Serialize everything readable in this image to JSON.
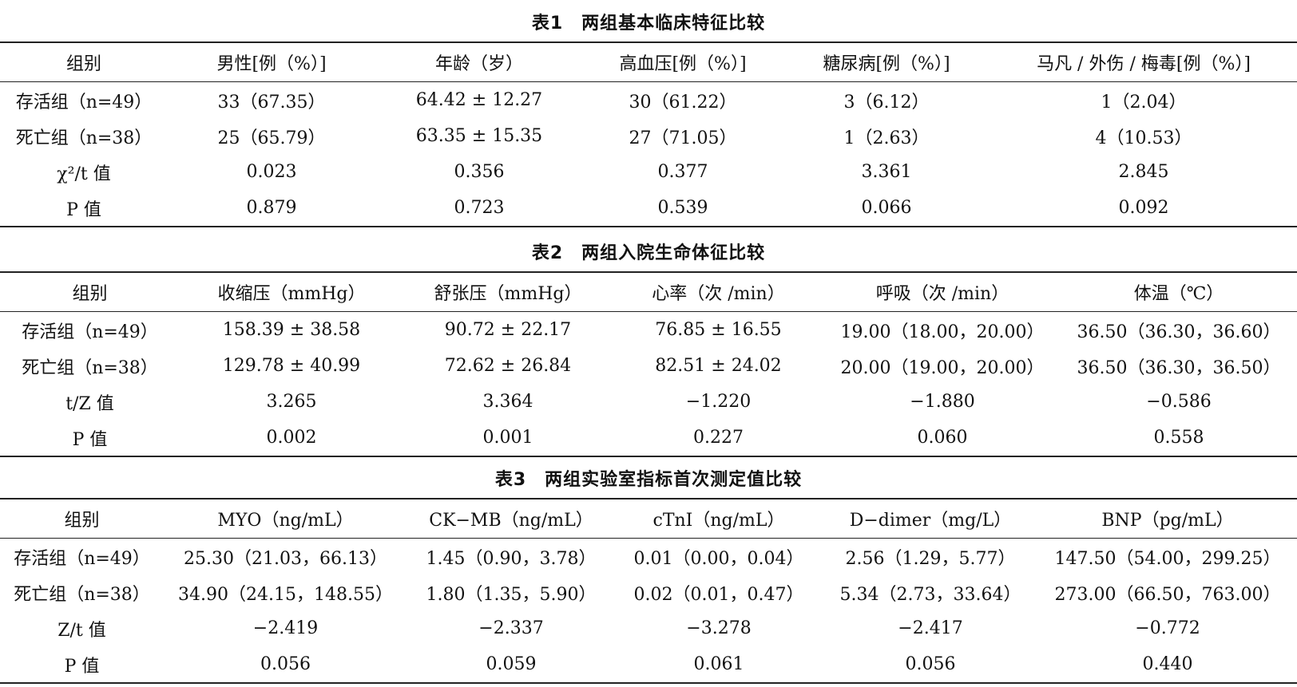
{
  "table1": {
    "caption": "表1　两组基本临床特征比较",
    "headers": [
      "组别",
      "男性[例（%）]",
      "年龄（岁）",
      "高血压[例（%）]",
      "糖尿病[例（%）]",
      "马凡 / 外伤 / 梅毒[例（%）]"
    ],
    "rows": [
      [
        "存活组（n=49）",
        "33（67.35）",
        "64.42 ± 12.27",
        "30（61.22）",
        "3（6.12）",
        "1（2.04）"
      ],
      [
        "死亡组（n=38）",
        "25（65.79）",
        "63.35 ± 15.35",
        "27（71.05）",
        "1（2.63）",
        "4（10.53）"
      ],
      [
        "χ²/t 值",
        "0.023",
        "0.356",
        "0.377",
        "3.361",
        "2.845"
      ],
      [
        "P 值",
        "0.879",
        "0.723",
        "0.539",
        "0.066",
        "0.092"
      ]
    ]
  },
  "table2": {
    "caption": "表2　两组入院生命体征比较",
    "headers": [
      "组别",
      "收缩压（mmHg）",
      "舒张压（mmHg）",
      "心率（次 /min）",
      "呼吸（次 /min）",
      "体温（℃）"
    ],
    "rows": [
      [
        "存活组（n=49）",
        "158.39 ± 38.58",
        "90.72 ± 22.17",
        "76.85 ± 16.55",
        "19.00（18.00，20.00）",
        "36.50（36.30，36.60）"
      ],
      [
        "死亡组（n=38）",
        "129.78 ± 40.99",
        "72.62 ± 26.84",
        "82.51 ± 24.02",
        "20.00（19.00，20.00）",
        "36.50（36.30，36.50）"
      ],
      [
        "t/Z 值",
        "3.265",
        "3.364",
        "−1.220",
        "−1.880",
        "−0.586"
      ],
      [
        "P 值",
        "0.002",
        "0.001",
        "0.227",
        "0.060",
        "0.558"
      ]
    ]
  },
  "table3": {
    "caption": "表3　两组实验室指标首次测定值比较",
    "headers": [
      "组别",
      "MYO（ng/mL）",
      "CK−MB（ng/mL）",
      "cTnI（ng/mL）",
      "D−dimer（mg/L）",
      "BNP（pg/mL）"
    ],
    "rows": [
      [
        "存活组（n=49）",
        "25.30（21.03，66.13）",
        "1.45（0.90，3.78）",
        "0.01（0.00，0.04）",
        "2.56（1.29，5.77）",
        "147.50（54.00，299.25）"
      ],
      [
        "死亡组（n=38）",
        "34.90（24.15，148.55）",
        "1.80（1.35，5.90）",
        "0.02（0.01，0.47）",
        "5.34（2.73，33.64）",
        "273.00（66.50，763.00）"
      ],
      [
        "Z/t 值",
        "−2.419",
        "−2.337",
        "−3.278",
        "−2.417",
        "−0.772"
      ],
      [
        "P 值",
        "0.056",
        "0.059",
        "0.061",
        "0.056",
        "0.440"
      ]
    ]
  }
}
